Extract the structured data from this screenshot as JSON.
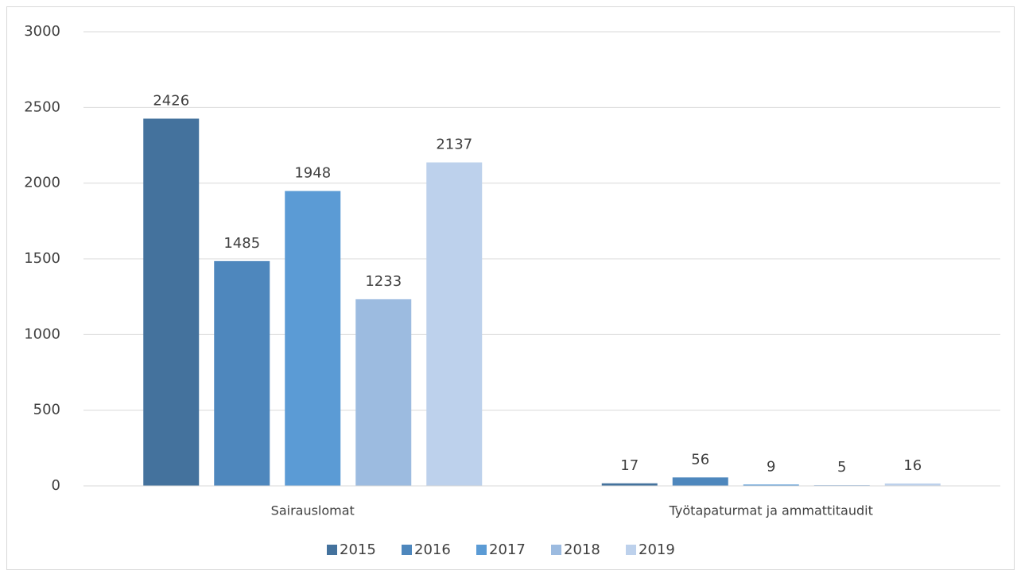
{
  "chart_data": {
    "type": "bar",
    "categories": [
      "Sairauslomat",
      "Työtapaturmat ja ammattitaudit"
    ],
    "series": [
      {
        "name": "2015",
        "color": "#44729d",
        "values": [
          2426,
          17
        ]
      },
      {
        "name": "2016",
        "color": "#4e87bd",
        "values": [
          1485,
          56
        ]
      },
      {
        "name": "2017",
        "color": "#5b9bd5",
        "values": [
          1948,
          9
        ]
      },
      {
        "name": "2018",
        "color": "#9cbbe0",
        "values": [
          1233,
          5
        ]
      },
      {
        "name": "2019",
        "color": "#bdd1ec",
        "values": [
          2137,
          16
        ]
      }
    ],
    "ylim": [
      0,
      3000
    ],
    "yticks": [
      0,
      500,
      1000,
      1500,
      2000,
      2500,
      3000
    ],
    "grid": true,
    "legend": "bottom",
    "data_labels": true
  }
}
